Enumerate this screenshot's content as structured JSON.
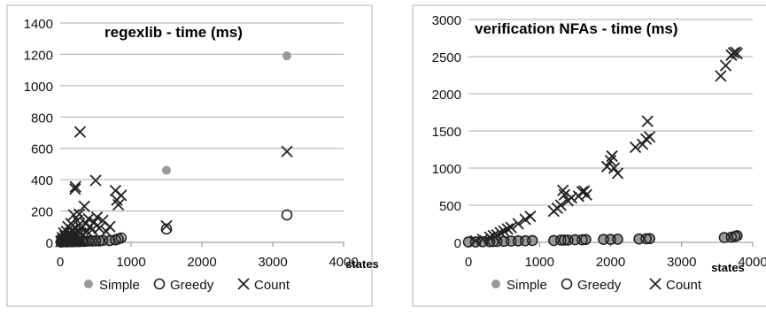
{
  "chart_data": [
    {
      "type": "scatter",
      "title": "regexlib - time (ms)",
      "xlabel": "states",
      "ylabel": "",
      "xlim": [
        0,
        4000
      ],
      "ylim": [
        0,
        1400
      ],
      "xticks": [
        "0",
        "1000",
        "2000",
        "3000",
        "4000"
      ],
      "yticks": [
        "0",
        "200",
        "400",
        "600",
        "800",
        "1000",
        "1200",
        "1400"
      ],
      "grid": "horizontal",
      "legend": "bottom",
      "series": [
        {
          "name": "Simple",
          "marker": "filled-circle",
          "color": "#999999",
          "points": [
            [
              10,
              2
            ],
            [
              30,
              3
            ],
            [
              50,
              4
            ],
            [
              70,
              5
            ],
            [
              90,
              3
            ],
            [
              110,
              6
            ],
            [
              130,
              4
            ],
            [
              150,
              7
            ],
            [
              170,
              5
            ],
            [
              190,
              6
            ],
            [
              210,
              8
            ],
            [
              230,
              5
            ],
            [
              250,
              9
            ],
            [
              270,
              6
            ],
            [
              300,
              7
            ],
            [
              330,
              8
            ],
            [
              360,
              6
            ],
            [
              400,
              10
            ],
            [
              450,
              9
            ],
            [
              500,
              12
            ],
            [
              550,
              11
            ],
            [
              600,
              14
            ],
            [
              700,
              12
            ],
            [
              800,
              18
            ],
            [
              850,
              20
            ],
            [
              1500,
              460
            ],
            [
              3200,
              1190
            ]
          ]
        },
        {
          "name": "Greedy",
          "marker": "open-circle",
          "color": "#222222",
          "points": [
            [
              10,
              2
            ],
            [
              30,
              3
            ],
            [
              50,
              4
            ],
            [
              70,
              5
            ],
            [
              90,
              3
            ],
            [
              110,
              4
            ],
            [
              130,
              6
            ],
            [
              150,
              5
            ],
            [
              170,
              4
            ],
            [
              190,
              6
            ],
            [
              210,
              5
            ],
            [
              230,
              7
            ],
            [
              250,
              6
            ],
            [
              270,
              5
            ],
            [
              300,
              8
            ],
            [
              330,
              6
            ],
            [
              360,
              7
            ],
            [
              400,
              9
            ],
            [
              450,
              8
            ],
            [
              500,
              10
            ],
            [
              550,
              9
            ],
            [
              600,
              12
            ],
            [
              700,
              11
            ],
            [
              780,
              16
            ],
            [
              820,
              22
            ],
            [
              860,
              28
            ],
            [
              1500,
              85
            ],
            [
              3200,
              175
            ]
          ]
        },
        {
          "name": "Count",
          "marker": "x",
          "color": "#222222",
          "points": [
            [
              10,
              5
            ],
            [
              20,
              10
            ],
            [
              30,
              30
            ],
            [
              40,
              15
            ],
            [
              50,
              60
            ],
            [
              60,
              20
            ],
            [
              70,
              40
            ],
            [
              80,
              25
            ],
            [
              90,
              70
            ],
            [
              100,
              35
            ],
            [
              110,
              100
            ],
            [
              120,
              30
            ],
            [
              130,
              55
            ],
            [
              140,
              20
            ],
            [
              150,
              120
            ],
            [
              160,
              45
            ],
            [
              170,
              80
            ],
            [
              180,
              40
            ],
            [
              190,
              175
            ],
            [
              200,
              60
            ],
            [
              210,
              340
            ],
            [
              215,
              355
            ],
            [
              220,
              90
            ],
            [
              230,
              50
            ],
            [
              240,
              140
            ],
            [
              250,
              70
            ],
            [
              260,
              110
            ],
            [
              270,
              180
            ],
            [
              280,
              705
            ],
            [
              290,
              60
            ],
            [
              300,
              90
            ],
            [
              320,
              50
            ],
            [
              340,
              230
            ],
            [
              360,
              120
            ],
            [
              380,
              70
            ],
            [
              400,
              150
            ],
            [
              420,
              100
            ],
            [
              450,
              80
            ],
            [
              480,
              130
            ],
            [
              500,
              395
            ],
            [
              520,
              160
            ],
            [
              550,
              90
            ],
            [
              600,
              140
            ],
            [
              650,
              70
            ],
            [
              700,
              100
            ],
            [
              780,
              330
            ],
            [
              800,
              270
            ],
            [
              820,
              240
            ],
            [
              860,
              300
            ],
            [
              1500,
              105
            ],
            [
              3200,
              580
            ]
          ]
        }
      ]
    },
    {
      "type": "scatter",
      "title": "verification NFAs - time (ms)",
      "xlabel": "states",
      "ylabel": "",
      "xlim": [
        0,
        4000
      ],
      "ylim": [
        0,
        3000
      ],
      "xticks": [
        "0",
        "1000",
        "2000",
        "3000",
        "4000"
      ],
      "yticks": [
        "0",
        "500",
        "1000",
        "1500",
        "2000",
        "2500",
        "3000"
      ],
      "grid": "horizontal",
      "legend": "bottom",
      "series": [
        {
          "name": "Simple",
          "marker": "filled-circle",
          "color": "#999999",
          "points": [
            [
              0,
              10
            ],
            [
              100,
              10
            ],
            [
              200,
              15
            ],
            [
              300,
              15
            ],
            [
              350,
              20
            ],
            [
              400,
              20
            ],
            [
              500,
              20
            ],
            [
              600,
              25
            ],
            [
              700,
              25
            ],
            [
              800,
              30
            ],
            [
              900,
              30
            ],
            [
              1200,
              30
            ],
            [
              1300,
              35
            ],
            [
              1350,
              35
            ],
            [
              1400,
              35
            ],
            [
              1500,
              40
            ],
            [
              1600,
              40
            ],
            [
              1650,
              40
            ],
            [
              1900,
              45
            ],
            [
              2000,
              45
            ],
            [
              2100,
              45
            ],
            [
              2400,
              50
            ],
            [
              2500,
              50
            ],
            [
              2550,
              55
            ],
            [
              3600,
              70
            ],
            [
              3700,
              75
            ],
            [
              3750,
              80
            ],
            [
              3780,
              85
            ]
          ]
        },
        {
          "name": "Greedy",
          "marker": "open-circle",
          "color": "#222222",
          "points": [
            [
              0,
              5
            ],
            [
              100,
              5
            ],
            [
              200,
              8
            ],
            [
              300,
              10
            ],
            [
              350,
              12
            ],
            [
              400,
              12
            ],
            [
              500,
              15
            ],
            [
              600,
              18
            ],
            [
              700,
              20
            ],
            [
              800,
              22
            ],
            [
              900,
              25
            ],
            [
              1200,
              25
            ],
            [
              1300,
              30
            ],
            [
              1350,
              30
            ],
            [
              1400,
              30
            ],
            [
              1500,
              35
            ],
            [
              1600,
              35
            ],
            [
              1650,
              38
            ],
            [
              1900,
              40
            ],
            [
              2000,
              40
            ],
            [
              2100,
              42
            ],
            [
              2400,
              45
            ],
            [
              2500,
              48
            ],
            [
              2550,
              50
            ],
            [
              3600,
              65
            ],
            [
              3700,
              70
            ],
            [
              3750,
              80
            ],
            [
              3780,
              90
            ]
          ]
        },
        {
          "name": "Count",
          "marker": "x",
          "color": "#222222",
          "points": [
            [
              100,
              20
            ],
            [
              200,
              40
            ],
            [
              300,
              70
            ],
            [
              350,
              90
            ],
            [
              400,
              100
            ],
            [
              450,
              130
            ],
            [
              500,
              150
            ],
            [
              550,
              180
            ],
            [
              600,
              200
            ],
            [
              700,
              250
            ],
            [
              800,
              310
            ],
            [
              870,
              350
            ],
            [
              1200,
              420
            ],
            [
              1250,
              460
            ],
            [
              1300,
              500
            ],
            [
              1330,
              700
            ],
            [
              1350,
              640
            ],
            [
              1400,
              560
            ],
            [
              1450,
              600
            ],
            [
              1550,
              620
            ],
            [
              1600,
              680
            ],
            [
              1630,
              690
            ],
            [
              1660,
              640
            ],
            [
              1950,
              1020
            ],
            [
              2000,
              1100
            ],
            [
              2020,
              1160
            ],
            [
              2050,
              1000
            ],
            [
              2100,
              930
            ],
            [
              2350,
              1280
            ],
            [
              2450,
              1320
            ],
            [
              2500,
              1390
            ],
            [
              2520,
              1630
            ],
            [
              2550,
              1420
            ],
            [
              3550,
              2240
            ],
            [
              3620,
              2380
            ],
            [
              3700,
              2520
            ],
            [
              3730,
              2550
            ],
            [
              3760,
              2560
            ],
            [
              3780,
              2540
            ]
          ]
        }
      ]
    }
  ]
}
